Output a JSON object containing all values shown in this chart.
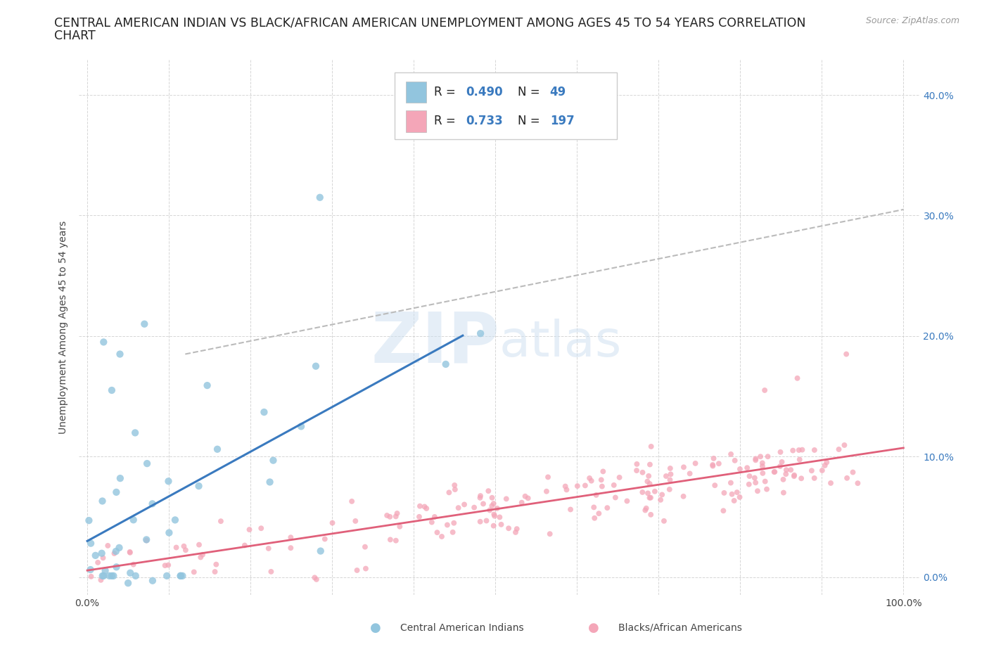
{
  "title_line1": "CENTRAL AMERICAN INDIAN VS BLACK/AFRICAN AMERICAN UNEMPLOYMENT AMONG AGES 45 TO 54 YEARS CORRELATION",
  "title_line2": "CHART",
  "source": "Source: ZipAtlas.com",
  "ylabel": "Unemployment Among Ages 45 to 54 years",
  "watermark": "ZIPatlas",
  "color_blue": "#92c5de",
  "color_pink": "#f4a6b8",
  "color_blue_line": "#3a7abf",
  "color_pink_line": "#e0607a",
  "color_dash": "#bbbbbb",
  "color_blue_text": "#3a7abf",
  "color_right_tick": "#3a7abf",
  "background_color": "#ffffff",
  "grid_color": "#cccccc",
  "title_fontsize": 12.5,
  "axis_label_fontsize": 10,
  "tick_fontsize": 10,
  "legend_fontsize": 12,
  "ytick_right_labels": [
    "0.0%",
    "10.0%",
    "20.0%",
    "30.0%",
    "40.0%"
  ],
  "ytick_right_colors": [
    "#3a7abf",
    "#3a7abf",
    "#3a7abf",
    "#3a7abf",
    "#3a7abf"
  ],
  "xtick_labels": [
    "0.0%",
    "",
    "",
    "",
    "",
    "",
    "",
    "",
    "",
    "",
    "100.0%"
  ]
}
